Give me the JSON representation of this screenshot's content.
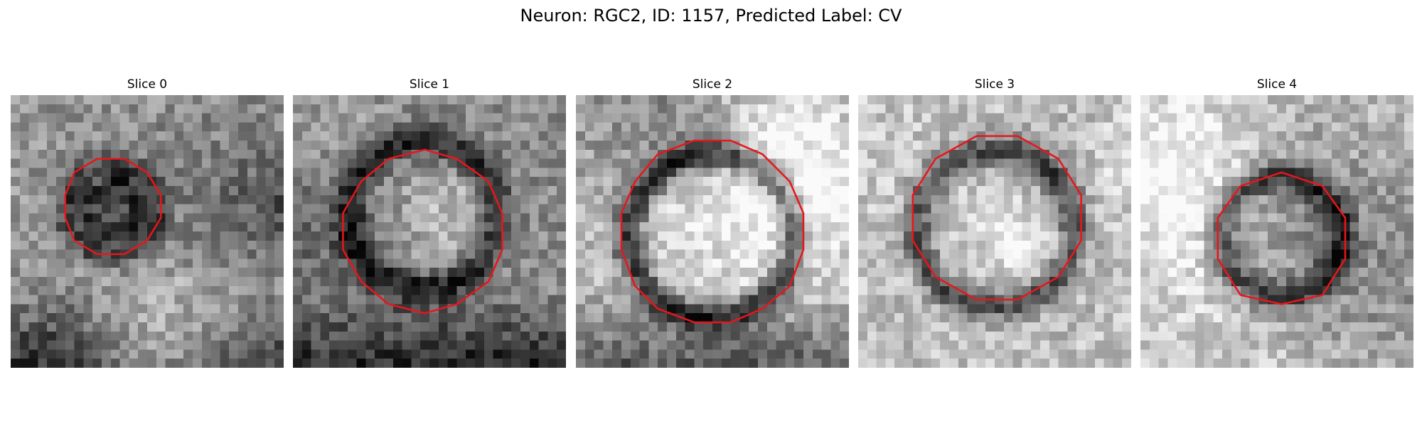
{
  "figure": {
    "title": "Neuron: RGC2, ID: 1157, Predicted Label: CV"
  },
  "panels": [
    {
      "title": "Slice 0"
    },
    {
      "title": "Slice 1"
    },
    {
      "title": "Slice 2"
    },
    {
      "title": "Slice 3"
    },
    {
      "title": "Slice 4"
    }
  ],
  "colors": {
    "contour": "#e8161b",
    "background": "#ffffff"
  }
}
